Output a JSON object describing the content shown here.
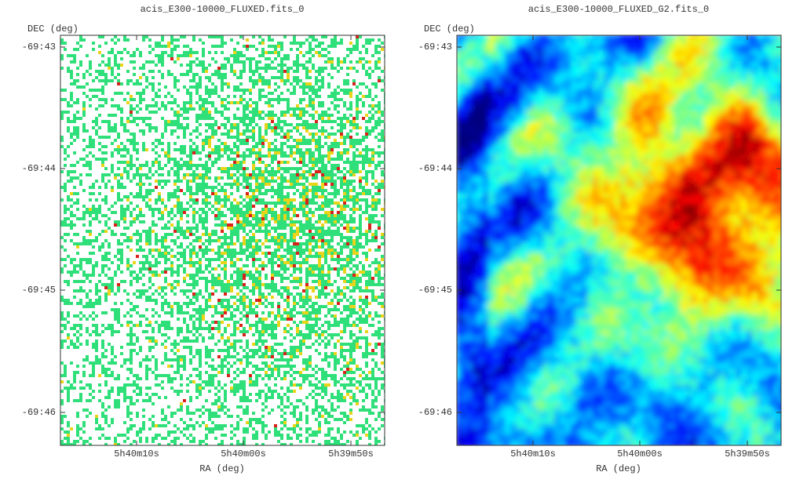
{
  "panels": [
    {
      "title": "acis_E300-10000_FLUXED.fits_0",
      "x_label": "RA (deg)",
      "y_label": "DEC (deg)",
      "x_ticks": [
        "5h40m10s",
        "5h40m00s",
        "5h39m50s"
      ],
      "y_ticks": [
        "-69:43",
        "-69:44",
        "-69:45",
        "-69:46"
      ]
    },
    {
      "title": "acis_E300-10000_FLUXED_G2.fits_0",
      "x_label": "RA (deg)",
      "y_label": "DEC (deg)",
      "x_ticks": [
        "5h40m10s",
        "5h40m00s",
        "5h39m50s"
      ],
      "y_ticks": [
        "-69:43",
        "-69:44",
        "-69:45",
        "-69:46"
      ]
    }
  ]
}
